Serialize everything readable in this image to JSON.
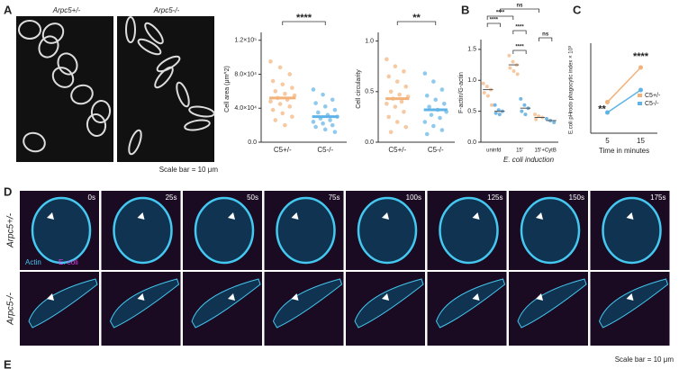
{
  "panels": [
    "A",
    "B",
    "C",
    "D",
    "E"
  ],
  "images_a": {
    "labels": [
      "Arpc5+/-",
      "Arpc5-/-"
    ],
    "scale": "Scale bar = 10 μm"
  },
  "movie": {
    "times": [
      "0s",
      "25s",
      "50s",
      "75s",
      "100s",
      "125s",
      "150s",
      "175s"
    ],
    "rows": [
      "Arpc5+/-",
      "Arpc5-/-"
    ],
    "channels": [
      "Actin",
      "E. coli"
    ],
    "scale": "Scale bar = 10 μm"
  },
  "chart_data": [
    {
      "type": "strip",
      "ylabel": "Cell area (μm^2)",
      "categories": [
        "C5+/-",
        "C5-/-"
      ],
      "series": [
        {
          "colors": [
            "#f2b27a",
            "#5fb3e6"
          ],
          "values": [
            52000,
            30000
          ],
          "points": [
            [
              95000,
              88000,
              80000,
              72000,
              68000,
              64000,
              60000,
              57000,
              55000,
              52000,
              50000,
              48000,
              45000,
              42000,
              38000,
              34000,
              30000,
              26000,
              20000
            ],
            [
              62000,
              56000,
              50000,
              46000,
              42000,
              38000,
              35000,
              32000,
              30000,
              28000,
              26000,
              24000,
              22000,
              20000,
              18000,
              15000,
              12000
            ]
          ]
        }
      ],
      "ylim": [
        0,
        125000
      ],
      "yticks": [
        {
          "value": 0,
          "label": "0.0"
        },
        {
          "value": 40000,
          "label": "4.0×10⁴"
        },
        {
          "value": 80000,
          "label": "8.0×10⁴"
        },
        {
          "value": 120000,
          "label": "1.2×10⁵"
        }
      ],
      "annotations": [
        "****"
      ]
    },
    {
      "type": "strip",
      "ylabel": "Cell circularity",
      "categories": [
        "C5+/-",
        "C5-/-"
      ],
      "series": [
        {
          "colors": [
            "#f2b27a",
            "#5fb3e6"
          ],
          "values": [
            0.43,
            0.32
          ],
          "points": [
            [
              0.82,
              0.75,
              0.7,
              0.65,
              0.6,
              0.55,
              0.5,
              0.47,
              0.45,
              0.43,
              0.4,
              0.38,
              0.35,
              0.3,
              0.25,
              0.2,
              0.15,
              0.1
            ],
            [
              0.68,
              0.6,
              0.52,
              0.46,
              0.42,
              0.38,
              0.35,
              0.32,
              0.3,
              0.27,
              0.24,
              0.2,
              0.16,
              0.12,
              0.08
            ]
          ]
        }
      ],
      "ylim": [
        0,
        1.05
      ],
      "yticks": [
        {
          "value": 0,
          "label": "0.0"
        },
        0.5,
        {
          "value": 1,
          "label": "1.0"
        }
      ],
      "annotations": [
        "**"
      ]
    },
    {
      "type": "strip",
      "ylabel": "F-actin/G-actin",
      "xlabel": "E. coli induction",
      "categories": [
        "uninfd",
        "15'",
        "15'+CytB"
      ],
      "series": [
        {
          "name": "C5+/-",
          "color": "#f2b27a",
          "values": [
            0.85,
            1.25,
            0.4
          ],
          "points": [
            [
              0.95,
              0.9,
              0.85,
              0.8,
              0.75,
              0.6
            ],
            [
              1.4,
              1.3,
              1.25,
              1.2,
              1.15,
              1.1
            ],
            [
              0.45,
              0.42,
              0.4,
              0.37
            ]
          ]
        },
        {
          "name": "C5-/-",
          "color": "#3a9ad9",
          "values": [
            0.5,
            0.55,
            0.35
          ],
          "points": [
            [
              0.6,
              0.52,
              0.5,
              0.47,
              0.45
            ],
            [
              0.7,
              0.6,
              0.55,
              0.5,
              0.45
            ],
            [
              0.38,
              0.35,
              0.32
            ]
          ]
        }
      ],
      "ylim": [
        0,
        1.6
      ],
      "yticks": [
        {
          "value": 0,
          "label": "0.0"
        },
        0.5,
        {
          "value": 1,
          "label": "1.0"
        },
        1.5
      ],
      "annotations": [
        "****",
        "****",
        "****",
        "****",
        "ns",
        "ns"
      ]
    },
    {
      "type": "line",
      "ylabel": "E.coli pHrodo phagocytic index × 10³",
      "xlabel": "Time in minutes",
      "categories": [
        "5",
        "15"
      ],
      "series": [
        {
          "name": "C5+/-",
          "color": "#f2b27a",
          "values": [
            9,
            19
          ]
        },
        {
          "name": "C5-/-",
          "color": "#5fb3e6",
          "values": [
            6,
            12.5
          ]
        }
      ],
      "ylim": [
        0,
        25
      ],
      "annotations": [
        "**",
        "****"
      ]
    }
  ]
}
